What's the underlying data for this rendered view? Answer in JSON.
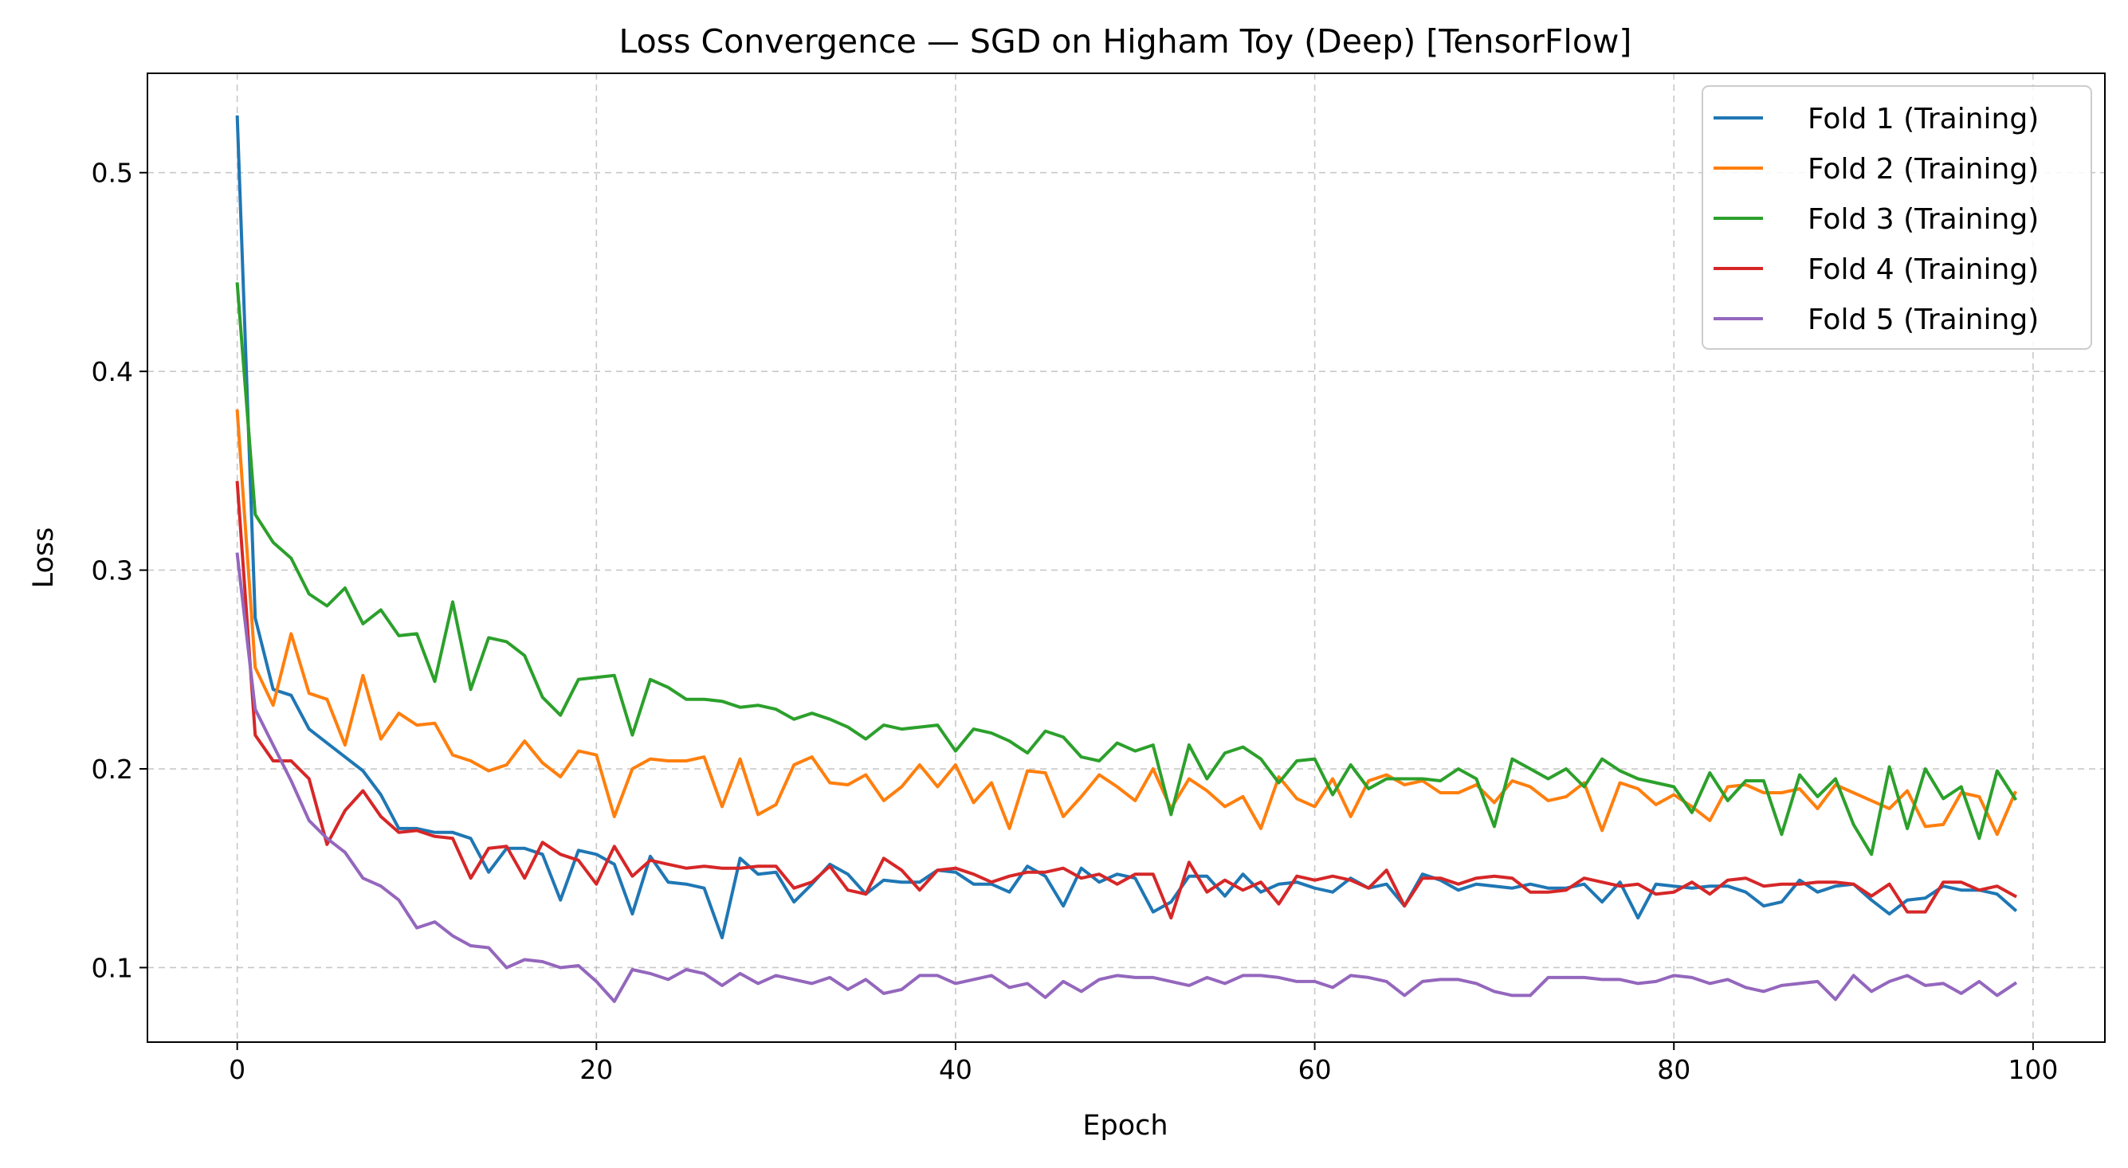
{
  "chart_data": {
    "type": "line",
    "title": "Loss Convergence — SGD on Higham Toy (Deep) [TensorFlow]",
    "xlabel": "Epoch",
    "ylabel": "Loss",
    "xlim": [
      -5,
      104
    ],
    "ylim": [
      0.0625,
      0.55
    ],
    "xticks": [
      0,
      20,
      40,
      60,
      80,
      100
    ],
    "yticks": [
      0.1,
      0.2,
      0.3,
      0.4,
      0.5
    ],
    "xtick_labels": [
      "0",
      "20",
      "40",
      "60",
      "80",
      "100"
    ],
    "ytick_labels": [
      "0.1",
      "0.2",
      "0.3",
      "0.4",
      "0.5"
    ],
    "grid": true,
    "legend_position": "top-right",
    "x": [
      0,
      1,
      2,
      3,
      4,
      5,
      6,
      7,
      8,
      9,
      10,
      11,
      12,
      13,
      14,
      15,
      16,
      17,
      18,
      19,
      20,
      21,
      22,
      23,
      24,
      25,
      26,
      27,
      28,
      29,
      30,
      31,
      32,
      33,
      34,
      35,
      36,
      37,
      38,
      39,
      40,
      41,
      42,
      43,
      44,
      45,
      46,
      47,
      48,
      49,
      50,
      51,
      52,
      53,
      54,
      55,
      56,
      57,
      58,
      59,
      60,
      61,
      62,
      63,
      64,
      65,
      66,
      67,
      68,
      69,
      70,
      71,
      72,
      73,
      74,
      75,
      76,
      77,
      78,
      79,
      80,
      81,
      82,
      83,
      84,
      85,
      86,
      87,
      88,
      89,
      90,
      91,
      92,
      93,
      94,
      95,
      96,
      97,
      98,
      99
    ],
    "series": [
      {
        "name": "Fold 1 (Training)",
        "color": "#1f77b4",
        "values": [
          0.528,
          0.276,
          0.24,
          0.237,
          0.22,
          0.213,
          0.206,
          0.199,
          0.187,
          0.17,
          0.17,
          0.168,
          0.168,
          0.165,
          0.148,
          0.16,
          0.16,
          0.157,
          0.134,
          0.159,
          0.157,
          0.152,
          0.127,
          0.156,
          0.143,
          0.142,
          0.14,
          0.115,
          0.155,
          0.147,
          0.148,
          0.133,
          0.142,
          0.152,
          0.147,
          0.137,
          0.144,
          0.143,
          0.143,
          0.149,
          0.148,
          0.142,
          0.142,
          0.138,
          0.151,
          0.146,
          0.131,
          0.15,
          0.143,
          0.147,
          0.145,
          0.128,
          0.133,
          0.146,
          0.146,
          0.136,
          0.147,
          0.138,
          0.142,
          0.143,
          0.14,
          0.138,
          0.145,
          0.14,
          0.142,
          0.131,
          0.147,
          0.144,
          0.139,
          0.142,
          0.141,
          0.14,
          0.142,
          0.14,
          0.14,
          0.142,
          0.133,
          0.143,
          0.125,
          0.142,
          0.141,
          0.14,
          0.141,
          0.141,
          0.138,
          0.131,
          0.133,
          0.144,
          0.138,
          0.141,
          0.142,
          0.134,
          0.127,
          0.134,
          0.135,
          0.141,
          0.139,
          0.139,
          0.137,
          0.129
        ]
      },
      {
        "name": "Fold 2 (Training)",
        "color": "#ff7f0e",
        "values": [
          0.38,
          0.251,
          0.232,
          0.268,
          0.238,
          0.235,
          0.212,
          0.247,
          0.215,
          0.228,
          0.222,
          0.223,
          0.207,
          0.204,
          0.199,
          0.202,
          0.214,
          0.203,
          0.196,
          0.209,
          0.207,
          0.176,
          0.2,
          0.205,
          0.204,
          0.204,
          0.206,
          0.181,
          0.205,
          0.177,
          0.182,
          0.202,
          0.206,
          0.193,
          0.192,
          0.197,
          0.184,
          0.191,
          0.202,
          0.191,
          0.202,
          0.183,
          0.193,
          0.17,
          0.199,
          0.198,
          0.176,
          0.186,
          0.197,
          0.191,
          0.184,
          0.2,
          0.18,
          0.195,
          0.189,
          0.181,
          0.186,
          0.17,
          0.196,
          0.185,
          0.181,
          0.195,
          0.176,
          0.194,
          0.197,
          0.192,
          0.194,
          0.188,
          0.188,
          0.192,
          0.183,
          0.194,
          0.191,
          0.184,
          0.186,
          0.193,
          0.169,
          0.193,
          0.19,
          0.182,
          0.187,
          0.181,
          0.174,
          0.191,
          0.192,
          0.188,
          0.188,
          0.19,
          0.18,
          0.192,
          0.188,
          0.184,
          0.18,
          0.189,
          0.171,
          0.172,
          0.188,
          0.186,
          0.167,
          0.188
        ]
      },
      {
        "name": "Fold 3 (Training)",
        "color": "#2ca02c",
        "values": [
          0.444,
          0.328,
          0.314,
          0.306,
          0.288,
          0.282,
          0.291,
          0.273,
          0.28,
          0.267,
          0.268,
          0.244,
          0.284,
          0.24,
          0.266,
          0.264,
          0.257,
          0.236,
          0.227,
          0.245,
          0.246,
          0.247,
          0.217,
          0.245,
          0.241,
          0.235,
          0.235,
          0.234,
          0.231,
          0.232,
          0.23,
          0.225,
          0.228,
          0.225,
          0.221,
          0.215,
          0.222,
          0.22,
          0.221,
          0.222,
          0.209,
          0.22,
          0.218,
          0.214,
          0.208,
          0.219,
          0.216,
          0.206,
          0.204,
          0.213,
          0.209,
          0.212,
          0.177,
          0.212,
          0.195,
          0.208,
          0.211,
          0.205,
          0.193,
          0.204,
          0.205,
          0.187,
          0.202,
          0.19,
          0.195,
          0.195,
          0.195,
          0.194,
          0.2,
          0.195,
          0.171,
          0.205,
          0.2,
          0.195,
          0.2,
          0.191,
          0.205,
          0.199,
          0.195,
          0.193,
          0.191,
          0.178,
          0.198,
          0.184,
          0.194,
          0.194,
          0.167,
          0.197,
          0.186,
          0.195,
          0.172,
          0.157,
          0.201,
          0.17,
          0.2,
          0.185,
          0.191,
          0.165,
          0.199,
          0.185
        ]
      },
      {
        "name": "Fold 4 (Training)",
        "color": "#d62728",
        "values": [
          0.344,
          0.217,
          0.204,
          0.204,
          0.195,
          0.162,
          0.179,
          0.189,
          0.176,
          0.168,
          0.169,
          0.166,
          0.165,
          0.145,
          0.16,
          0.161,
          0.145,
          0.163,
          0.157,
          0.154,
          0.142,
          0.161,
          0.146,
          0.154,
          0.152,
          0.15,
          0.151,
          0.15,
          0.15,
          0.151,
          0.151,
          0.14,
          0.143,
          0.151,
          0.139,
          0.137,
          0.155,
          0.149,
          0.139,
          0.149,
          0.15,
          0.147,
          0.143,
          0.146,
          0.148,
          0.148,
          0.15,
          0.145,
          0.147,
          0.142,
          0.147,
          0.147,
          0.125,
          0.153,
          0.138,
          0.144,
          0.139,
          0.143,
          0.132,
          0.146,
          0.144,
          0.146,
          0.144,
          0.14,
          0.149,
          0.131,
          0.145,
          0.145,
          0.142,
          0.145,
          0.146,
          0.145,
          0.138,
          0.138,
          0.139,
          0.145,
          0.143,
          0.141,
          0.142,
          0.137,
          0.138,
          0.143,
          0.137,
          0.144,
          0.145,
          0.141,
          0.142,
          0.142,
          0.143,
          0.143,
          0.142,
          0.136,
          0.142,
          0.128,
          0.128,
          0.143,
          0.143,
          0.139,
          0.141,
          0.136
        ]
      },
      {
        "name": "Fold 5 (Training)",
        "color": "#9467bd",
        "values": [
          0.308,
          0.23,
          0.212,
          0.194,
          0.174,
          0.165,
          0.158,
          0.145,
          0.141,
          0.134,
          0.12,
          0.123,
          0.116,
          0.111,
          0.11,
          0.1,
          0.104,
          0.103,
          0.1,
          0.101,
          0.093,
          0.083,
          0.099,
          0.097,
          0.094,
          0.099,
          0.097,
          0.091,
          0.097,
          0.092,
          0.096,
          0.094,
          0.092,
          0.095,
          0.089,
          0.094,
          0.087,
          0.089,
          0.096,
          0.096,
          0.092,
          0.094,
          0.096,
          0.09,
          0.092,
          0.085,
          0.093,
          0.088,
          0.094,
          0.096,
          0.095,
          0.095,
          0.093,
          0.091,
          0.095,
          0.092,
          0.096,
          0.096,
          0.095,
          0.093,
          0.093,
          0.09,
          0.096,
          0.095,
          0.093,
          0.086,
          0.093,
          0.094,
          0.094,
          0.092,
          0.088,
          0.086,
          0.086,
          0.095,
          0.095,
          0.095,
          0.094,
          0.094,
          0.092,
          0.093,
          0.096,
          0.095,
          0.092,
          0.094,
          0.09,
          0.088,
          0.091,
          0.092,
          0.093,
          0.084,
          0.096,
          0.088,
          0.093,
          0.096,
          0.091,
          0.092,
          0.087,
          0.093,
          0.086,
          0.092
        ]
      }
    ]
  }
}
